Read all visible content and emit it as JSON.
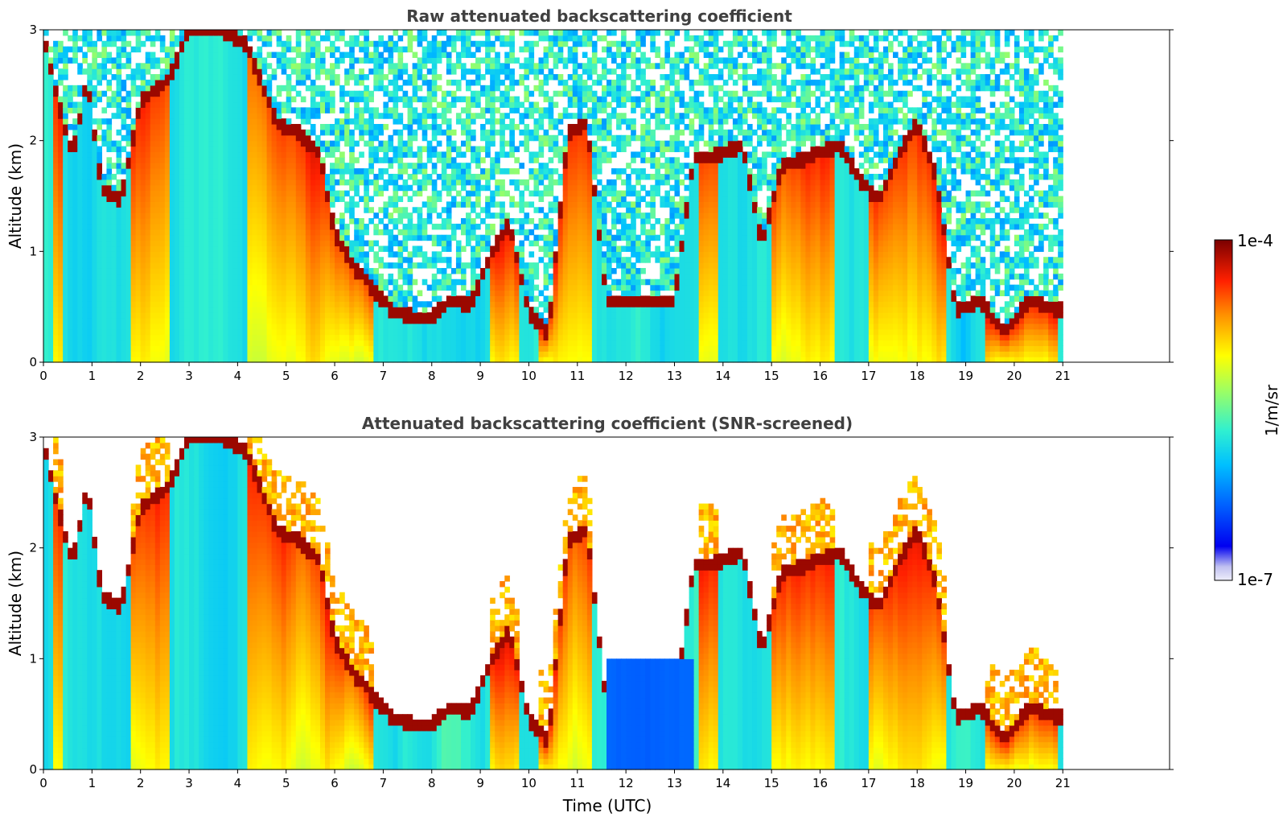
{
  "chart_data": [
    {
      "type": "heatmap",
      "title": "Raw attenuated backscattering coefficient",
      "xlabel": "",
      "ylabel": "Altitude (km)",
      "xlim": [
        0,
        23.2
      ],
      "ylim": [
        0,
        3
      ],
      "x_ticks": [
        "0",
        "1",
        "2",
        "3",
        "4",
        "5",
        "6",
        "7",
        "8",
        "9",
        "10",
        "11",
        "12",
        "13",
        "14",
        "15",
        "16",
        "17",
        "18",
        "19",
        "20",
        "21"
      ],
      "y_ticks": [
        "0",
        "1",
        "2",
        "3"
      ],
      "data_extent_x": [
        0,
        21
      ],
      "screened": false
    },
    {
      "type": "heatmap",
      "title": "Attenuated backscattering coefficient (SNR-screened)",
      "xlabel": "Time (UTC)",
      "ylabel": "Altitude (km)",
      "xlim": [
        0,
        23.2
      ],
      "ylim": [
        0,
        3
      ],
      "x_ticks": [
        "0",
        "1",
        "2",
        "3",
        "4",
        "5",
        "6",
        "7",
        "8",
        "9",
        "10",
        "11",
        "12",
        "13",
        "14",
        "15",
        "16",
        "17",
        "18",
        "19",
        "20",
        "21"
      ],
      "y_ticks": [
        "0",
        "1",
        "2",
        "3"
      ],
      "data_extent_x": [
        0,
        21
      ],
      "screened": true
    }
  ],
  "colorbar": {
    "label": "1/m/sr",
    "max_label": "1e-4",
    "min_label": "1e-7",
    "scale": "log",
    "colormap": "jet",
    "colors": [
      "#e6e6f5",
      "#c8c8f0",
      "#0000ff",
      "#0080ff",
      "#00c8ff",
      "#40f0c0",
      "#a0ff60",
      "#ffff00",
      "#ffa000",
      "#ff4000",
      "#c00000",
      "#800000"
    ]
  }
}
